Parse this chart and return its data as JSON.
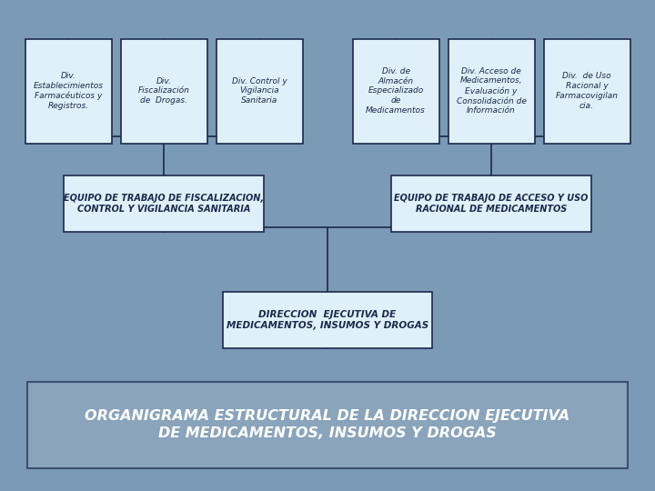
{
  "bg_color": "#7b9ab5",
  "title_text": "ORGANIGRAMA ESTRUCTURAL DE LA DIRECCION EJECUTIVA\nDE MEDICAMENTOS, INSUMOS Y DROGAS",
  "title_box_color": "#8aa4bc",
  "title_border_color": "#3a5070",
  "title_text_color": "white",
  "box_fill_color": "#dff0fa",
  "box_border_color": "#1a2a4a",
  "line_color": "#1a2a4a",
  "root_text": "DIRECCION  EJECUTIVA DE\nMEDICAMENTOS, INSUMOS Y DROGAS",
  "left_mid_text": "EQUIPO DE TRABAJO DE FISCALIZACION,\nCONTROL Y VIGILANCIA SANITARIA",
  "right_mid_text": "EQUIPO DE TRABAJO DE ACCESO Y USO\nRACIONAL DE MEDICAMENTOS",
  "left_children": [
    "Div.\nEstablecimientos\nFarmacéuticos y\nRegistros.",
    "Div.\nFiscalización\nde  Drogas.",
    "Div. Control y\nVigilancia\nSanitaria"
  ],
  "right_children": [
    "Div. de\nAlmacén\nEspecializado\nde\nMedicamentos",
    "Div. Acceso de\nMedicamentos,\nEvaluación y\nConsolidación de\nInformación",
    "Div.  de Uso\nRacional y\nFarmacovigilan\ncia."
  ],
  "font_family": "DejaVu Sans",
  "title_fontsize": 11.5,
  "root_fontsize": 7.5,
  "mid_fontsize": 7.0,
  "child_fontsize": 6.5
}
